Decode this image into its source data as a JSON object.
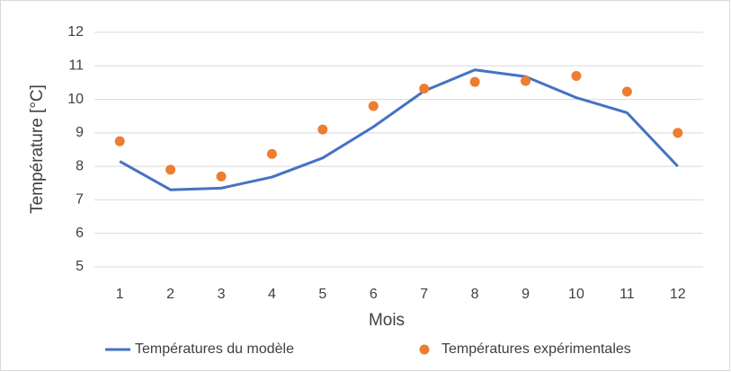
{
  "chart_data": {
    "type": "line",
    "y_label": "Température [°C]",
    "x_label": "Mois",
    "categories": [
      "1",
      "2",
      "3",
      "4",
      "5",
      "6",
      "7",
      "8",
      "9",
      "10",
      "11",
      "12"
    ],
    "series": [
      {
        "name": "Températures du modèle",
        "type": "line",
        "color": "#4472c4",
        "values": [
          8.15,
          7.3,
          7.35,
          7.68,
          8.25,
          9.18,
          10.25,
          10.88,
          10.68,
          10.05,
          9.6,
          8.0
        ]
      },
      {
        "name": "Températures expérimentales",
        "type": "scatter",
        "color": "#ed7d31",
        "values": [
          8.75,
          7.9,
          7.7,
          8.37,
          9.1,
          9.8,
          10.32,
          10.52,
          10.55,
          10.7,
          10.23,
          9.0
        ]
      }
    ],
    "ylim": [
      5,
      12
    ],
    "yticks": [
      5,
      6,
      7,
      8,
      9,
      10,
      11,
      12
    ],
    "grid": true,
    "legend": "bottom"
  }
}
